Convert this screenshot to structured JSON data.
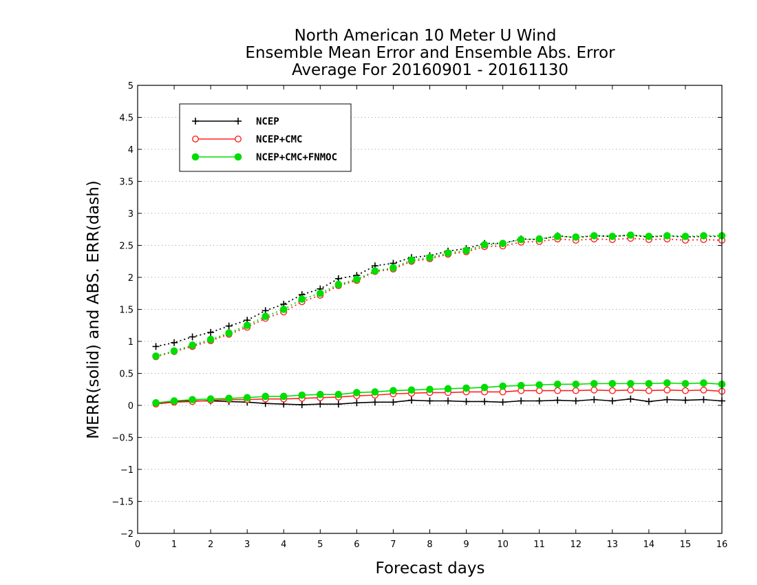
{
  "chart_data": {
    "type": "line",
    "title": [
      "North American 10 Meter U Wind",
      "Ensemble Mean Error and Ensemble Abs. Error",
      "Average For 20160901 - 20161130"
    ],
    "xlabel": "Forecast days",
    "ylabel": "MERR(solid) and ABS. ERR(dash)",
    "xlim": [
      0,
      16
    ],
    "ylim": [
      -2,
      5
    ],
    "x_ticks": [
      "0",
      "1",
      "2",
      "3",
      "4",
      "5",
      "6",
      "7",
      "8",
      "9",
      "10",
      "11",
      "12",
      "13",
      "14",
      "15",
      "16"
    ],
    "y_ticks": [
      "−2",
      "−1.5",
      "−1",
      "−0.5",
      "0",
      "0.5",
      "1",
      "1.5",
      "2",
      "2.5",
      "3",
      "3.5",
      "4",
      "4.5",
      "5"
    ],
    "grid": true,
    "legend_position": "top-left",
    "x": [
      0.5,
      1,
      1.5,
      2,
      2.5,
      3,
      3.5,
      4,
      4.5,
      5,
      5.5,
      6,
      6.5,
      7,
      7.5,
      8,
      8.5,
      9,
      9.5,
      10,
      10.5,
      11,
      11.5,
      12,
      12.5,
      13,
      13.5,
      14,
      14.5,
      15,
      15.5,
      16
    ],
    "series": [
      {
        "name": "NCEP",
        "color": "#000000",
        "marker": "plus",
        "merr": [
          0.04,
          0.06,
          0.07,
          0.07,
          0.06,
          0.05,
          0.03,
          0.02,
          0.01,
          0.02,
          0.02,
          0.04,
          0.05,
          0.05,
          0.08,
          0.07,
          0.07,
          0.06,
          0.06,
          0.05,
          0.07,
          0.07,
          0.08,
          0.07,
          0.09,
          0.07,
          0.1,
          0.06,
          0.09,
          0.08,
          0.09,
          0.07
        ],
        "abserr": [
          0.92,
          0.98,
          1.07,
          1.14,
          1.24,
          1.33,
          1.48,
          1.58,
          1.73,
          1.82,
          1.98,
          2.03,
          2.18,
          2.22,
          2.31,
          2.34,
          2.41,
          2.45,
          2.53,
          2.53,
          2.6,
          2.59,
          2.65,
          2.62,
          2.65,
          2.64,
          2.66,
          2.63,
          2.65,
          2.63,
          2.64,
          2.64
        ]
      },
      {
        "name": "NCEP+CMC",
        "color": "#ff2020",
        "marker": "open-circle",
        "merr": [
          0.02,
          0.05,
          0.06,
          0.08,
          0.09,
          0.09,
          0.1,
          0.1,
          0.11,
          0.12,
          0.13,
          0.15,
          0.16,
          0.18,
          0.19,
          0.2,
          0.2,
          0.21,
          0.21,
          0.21,
          0.23,
          0.23,
          0.23,
          0.23,
          0.24,
          0.23,
          0.24,
          0.23,
          0.24,
          0.23,
          0.24,
          0.22
        ],
        "abserr": [
          0.76,
          0.84,
          0.92,
          1.01,
          1.11,
          1.22,
          1.36,
          1.46,
          1.62,
          1.72,
          1.87,
          1.95,
          2.09,
          2.13,
          2.25,
          2.29,
          2.36,
          2.4,
          2.48,
          2.49,
          2.55,
          2.56,
          2.6,
          2.58,
          2.6,
          2.59,
          2.61,
          2.59,
          2.6,
          2.58,
          2.59,
          2.58
        ]
      },
      {
        "name": "NCEP+CMC+FNMOC",
        "color": "#00dd00",
        "marker": "filled-circle",
        "merr": [
          0.04,
          0.07,
          0.09,
          0.1,
          0.11,
          0.12,
          0.14,
          0.14,
          0.16,
          0.17,
          0.17,
          0.2,
          0.21,
          0.23,
          0.24,
          0.25,
          0.26,
          0.27,
          0.28,
          0.3,
          0.31,
          0.32,
          0.33,
          0.33,
          0.34,
          0.34,
          0.34,
          0.34,
          0.35,
          0.34,
          0.35,
          0.33
        ],
        "abserr": [
          0.77,
          0.85,
          0.94,
          1.03,
          1.13,
          1.25,
          1.39,
          1.5,
          1.66,
          1.75,
          1.89,
          1.97,
          2.1,
          2.15,
          2.27,
          2.31,
          2.38,
          2.42,
          2.51,
          2.53,
          2.59,
          2.6,
          2.64,
          2.63,
          2.65,
          2.64,
          2.66,
          2.64,
          2.65,
          2.64,
          2.65,
          2.65
        ]
      }
    ]
  }
}
